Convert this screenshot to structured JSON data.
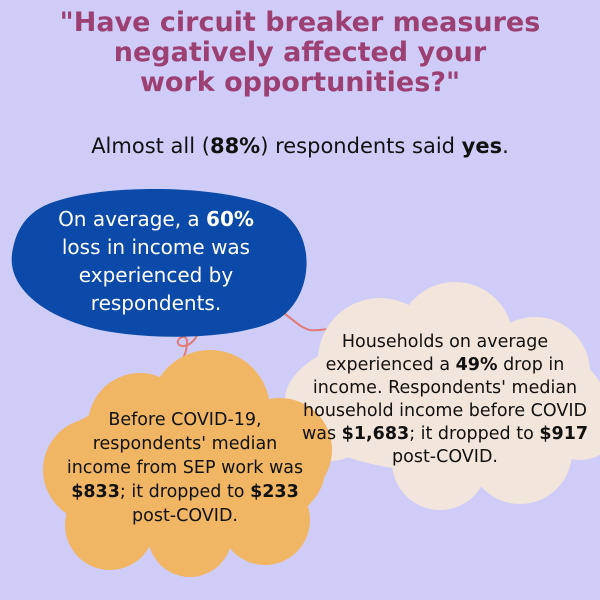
{
  "title": {
    "line1": "\"Have circuit breaker measures",
    "line2": "negatively affected your",
    "line3": "work opportunities?\""
  },
  "subtitle": {
    "pre": "Almost all (",
    "percent": "88%",
    "mid": ") respondents said ",
    "answer": "yes",
    "post": "."
  },
  "income_loss": {
    "pre": "On average, a ",
    "percent": "60%",
    "post": " loss in income was experienced by respondents."
  },
  "household": {
    "pre": "Households on average experienced a ",
    "percent": "49%",
    "mid1": " drop in income. Respondents' median household income before COVID was ",
    "before": "$1,683",
    "mid2": "; it dropped to ",
    "after": "$917",
    "post": " post-COVID."
  },
  "sep_income": {
    "pre": "Before COVID-19, respondents' median income from SEP work was ",
    "before": "$833",
    "mid": "; it dropped to ",
    "after": "$233",
    "post": " post-COVID."
  },
  "colors": {
    "background": "#cfcdf7",
    "title": "#9c3f73",
    "blue_bubble": "#0b4aa8",
    "cream_cloud": "#f2e5dc",
    "orange_cloud": "#f0b664",
    "connector": "#e07a78"
  }
}
